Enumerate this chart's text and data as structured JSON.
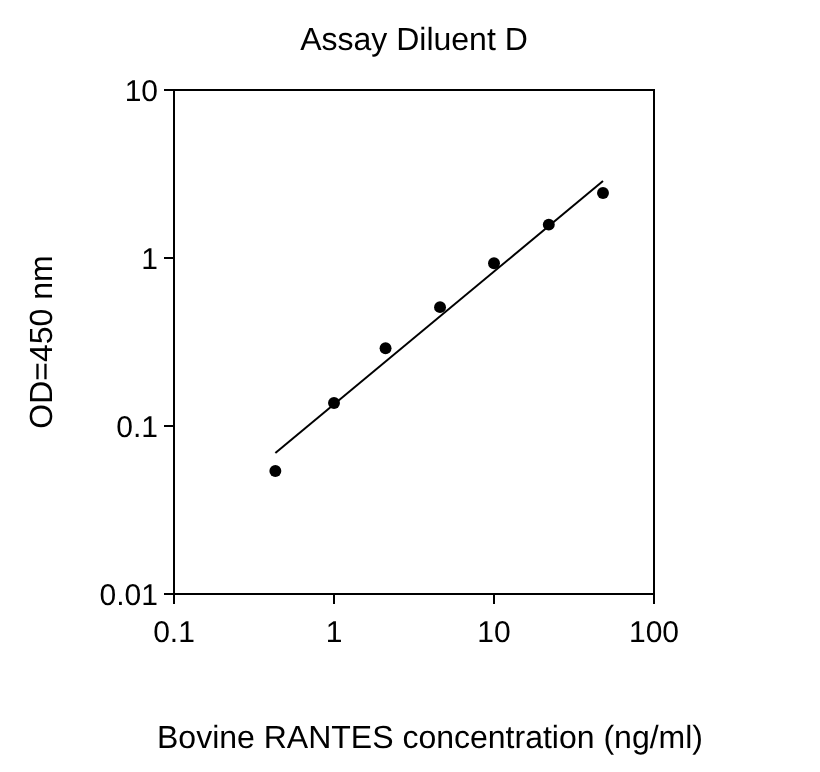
{
  "chart_data": {
    "type": "scatter",
    "title": "Assay Diluent D",
    "xlabel": "Bovine RANTES concentration (ng/ml)",
    "ylabel": "OD=450 nm",
    "log": "xy",
    "marker": "circle",
    "xlim": [
      0.1,
      100
    ],
    "xticks": [
      0.1,
      1,
      10,
      100
    ],
    "ylim": [
      0.01,
      10
    ],
    "yticks": [
      0.01,
      0.1,
      1,
      10
    ],
    "series": [
      {
        "color": "#000000",
        "x": [
          0.43,
          1,
          2.1,
          4.6,
          10,
          22,
          48
        ],
        "values": [
          0.054,
          0.137,
          0.29,
          0.51,
          0.93,
          1.58,
          2.44
        ]
      },
      {
        "type": "line",
        "color": "#000000",
        "marker": "none",
        "x": [
          0.43,
          48
        ],
        "values": [
          0.069,
          2.87
        ]
      }
    ]
  }
}
